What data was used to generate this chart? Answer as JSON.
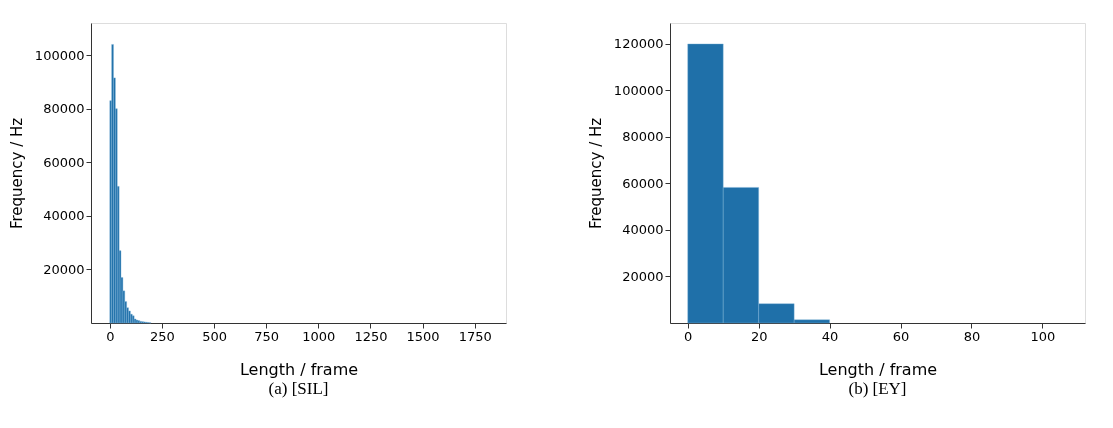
{
  "chart_data": [
    {
      "type": "histogram",
      "title": "(a)  [SIL]",
      "xlabel": "Length / frame",
      "ylabel": "Frequency / Hz",
      "color": "#1f70a9",
      "bins": [
        0,
        9,
        18,
        27,
        36,
        45,
        54,
        63,
        72,
        81,
        90,
        99,
        108,
        117,
        126,
        135,
        144,
        153,
        162,
        171,
        180,
        189,
        198
      ],
      "values": [
        83000,
        104000,
        91500,
        80000,
        51000,
        27000,
        17000,
        12000,
        8000,
        5700,
        4500,
        3300,
        2700,
        1500,
        1100,
        900,
        600,
        500,
        400,
        300,
        200,
        100
      ],
      "xlim": [
        -90,
        1900
      ],
      "xticks": [
        0,
        250,
        500,
        750,
        1000,
        1250,
        1500,
        1750
      ],
      "ylim": [
        0,
        112000
      ],
      "yticks": [
        20000,
        40000,
        60000,
        80000,
        100000
      ],
      "grid": false
    },
    {
      "type": "histogram",
      "title": "(b)  [EY]",
      "xlabel": "Length / frame",
      "ylabel": "Frequency / Hz",
      "color": "#1f70a9",
      "bins": [
        0,
        10,
        20,
        30,
        40
      ],
      "values": [
        120000,
        58300,
        8300,
        1400
      ],
      "xlim": [
        -5,
        112
      ],
      "xticks": [
        0,
        20,
        40,
        60,
        80,
        100
      ],
      "ylim": [
        0,
        129000
      ],
      "yticks": [
        20000,
        40000,
        60000,
        80000,
        100000,
        120000
      ],
      "grid": false
    }
  ]
}
